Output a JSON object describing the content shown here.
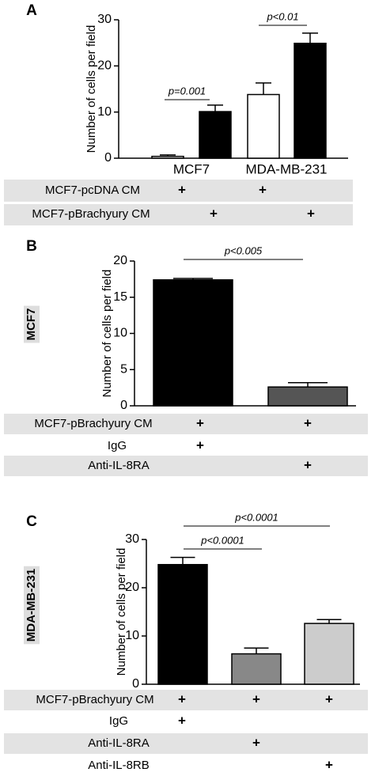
{
  "chart_data": [
    {
      "type": "bar",
      "panel_label": "A",
      "y_label": "Number of cells per field",
      "categories": [
        "MCF7",
        "MDA-MB-231"
      ],
      "series": [
        {
          "name": "MCF7-pcDNA CM",
          "color": "#ffffff",
          "values": [
            0.4,
            13.8
          ],
          "errors": [
            0.3,
            2.5
          ],
          "marks": [
            "+",
            "+"
          ]
        },
        {
          "name": "MCF7-pBrachyury CM",
          "color": "#000000",
          "values": [
            10.1,
            24.9
          ],
          "errors": [
            1.4,
            2.2
          ],
          "marks": [
            "+",
            "+"
          ]
        }
      ],
      "ylim": [
        0,
        30
      ],
      "yticks": [
        0,
        10,
        20,
        30
      ],
      "annotations": [
        "p=0.001",
        "p<0.01"
      ]
    },
    {
      "type": "bar",
      "panel_label": "B",
      "side_label": "MCF7",
      "y_label": "Number of cells per field",
      "categories": [
        null,
        null
      ],
      "values": [
        17.4,
        2.6
      ],
      "errors": [
        0.2,
        0.6
      ],
      "colors": [
        "#000000",
        "#555555"
      ],
      "ylim": [
        0,
        20
      ],
      "yticks": [
        0,
        5,
        10,
        15,
        20
      ],
      "annotations": [
        "p<0.005"
      ],
      "conditions": [
        {
          "label": "MCF7-pBrachyury CM",
          "marks": [
            "+",
            "+"
          ]
        },
        {
          "label": "IgG",
          "marks": [
            "+",
            null
          ]
        },
        {
          "label": "Anti-IL-8RA",
          "marks": [
            null,
            "+"
          ]
        }
      ]
    },
    {
      "type": "bar",
      "panel_label": "C",
      "side_label": "MDA-MB-231",
      "y_label": "Number of cells per field",
      "categories": [
        null,
        null,
        null
      ],
      "values": [
        24.8,
        6.3,
        12.6
      ],
      "errors": [
        1.5,
        1.2,
        0.8
      ],
      "colors": [
        "#000000",
        "#888888",
        "#cccccc"
      ],
      "ylim": [
        0,
        30
      ],
      "yticks": [
        0,
        10,
        20,
        30
      ],
      "annotations": [
        "p<0.0001",
        "p<0.0001"
      ],
      "conditions": [
        {
          "label": "MCF7-pBrachyury CM",
          "marks": [
            "+",
            "+",
            "+"
          ]
        },
        {
          "label": "IgG",
          "marks": [
            "+",
            null,
            null
          ]
        },
        {
          "label": "Anti-IL-8RA",
          "marks": [
            null,
            "+",
            null
          ]
        },
        {
          "label": "Anti-IL-8RB",
          "marks": [
            null,
            null,
            "+"
          ]
        }
      ]
    }
  ]
}
